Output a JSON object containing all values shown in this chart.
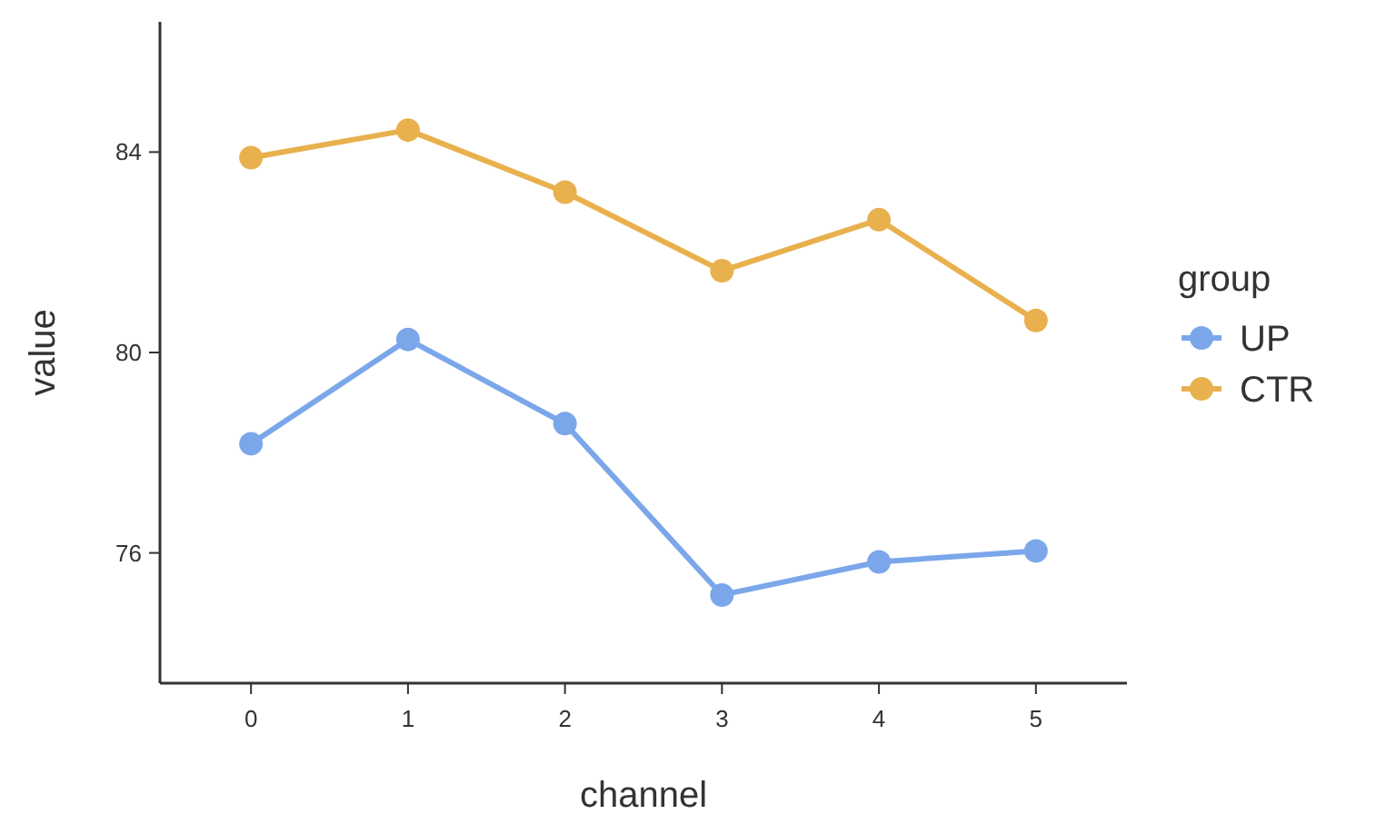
{
  "chart_data": {
    "type": "line",
    "xlabel": "channel",
    "ylabel": "value",
    "legend_title": "group",
    "legend": "right",
    "marker": "circle",
    "line_style": "solid",
    "grid": false,
    "x": [
      0,
      1,
      2,
      3,
      4,
      5
    ],
    "xlim": [
      -0.58,
      5.58
    ],
    "xticks": [
      0,
      1,
      2,
      3,
      4,
      5
    ],
    "ylim": [
      73.4,
      86.6
    ],
    "yticks": [
      76,
      80,
      84
    ],
    "series": [
      {
        "name": "UP",
        "color": "#7ba7ea",
        "values": [
          78.18,
          80.26,
          78.58,
          75.16,
          75.82,
          76.04
        ]
      },
      {
        "name": "CTR",
        "color": "#e8b14e",
        "values": [
          83.89,
          84.44,
          83.2,
          81.63,
          82.65,
          80.64
        ]
      }
    ]
  }
}
